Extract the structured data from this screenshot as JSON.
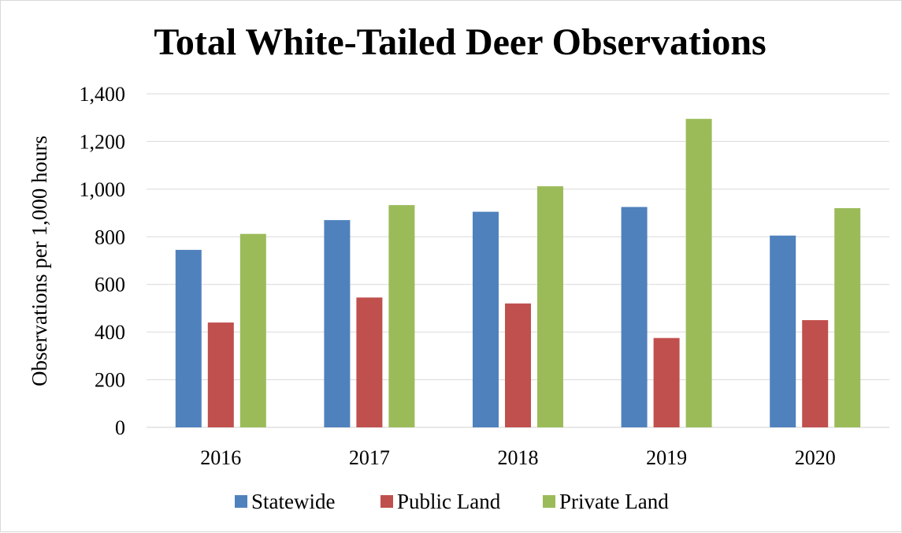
{
  "chart_data": {
    "type": "bar",
    "title": "Total White-Tailed Deer Observations",
    "xlabel": "",
    "ylabel": "Observations per 1,000 hours",
    "ylim": [
      0,
      1400
    ],
    "yticks": [
      "0",
      "200",
      "400",
      "600",
      "800",
      "1,000",
      "1,200",
      "1,400"
    ],
    "categories": [
      "2016",
      "2017",
      "2018",
      "2019",
      "2020"
    ],
    "series": [
      {
        "name": "Statewide",
        "color": "#4f81bd",
        "values": [
          745,
          870,
          905,
          925,
          805
        ]
      },
      {
        "name": "Public Land",
        "color": "#c0504d",
        "values": [
          440,
          545,
          520,
          375,
          450
        ]
      },
      {
        "name": "Private Land",
        "color": "#9bbb59",
        "values": [
          812,
          933,
          1012,
          1295,
          920
        ]
      }
    ],
    "grid": true,
    "legend_position": "bottom"
  }
}
